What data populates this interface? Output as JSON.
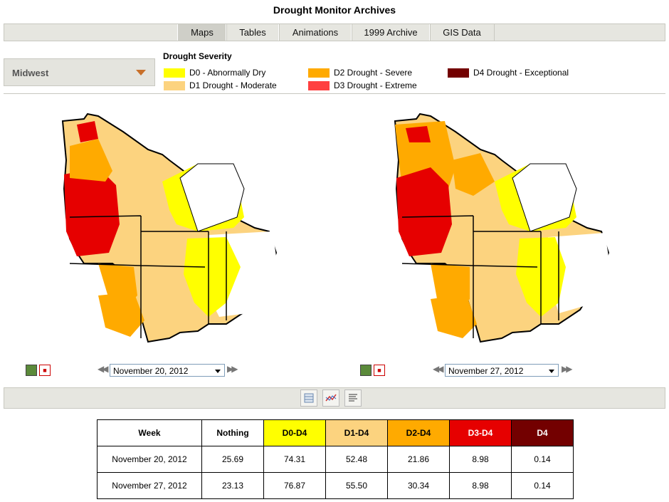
{
  "page": {
    "title": "Drought Monitor Archives"
  },
  "nav": {
    "tabs": [
      "Maps",
      "Tables",
      "Animations",
      "1999 Archive",
      "GIS Data"
    ],
    "active": "Maps"
  },
  "region": {
    "selected": "Midwest"
  },
  "legend": {
    "title": "Drought Severity",
    "items": [
      {
        "label": "D0 - Abnormally Dry",
        "color": "#ffff00"
      },
      {
        "label": "D1 Drought - Moderate",
        "color": "#fcd37f"
      },
      {
        "label": "D2 Drought - Severe",
        "color": "#ffaa00"
      },
      {
        "label": "D3 Drought - Extreme",
        "color": "#e60000"
      },
      {
        "label": "D4 Drought - Exceptional",
        "color": "#730000"
      }
    ]
  },
  "maps": {
    "left": {
      "date": "November 20, 2012"
    },
    "right": {
      "date": "November 27, 2012"
    }
  },
  "icons": {
    "image": "image-icon",
    "pdf": "pdf-icon",
    "prev": "double-left-arrow-icon",
    "next": "double-right-arrow-icon",
    "table_view": "table-icon",
    "chart_view": "chart-icon",
    "text_view": "text-icon"
  },
  "table": {
    "headers": [
      "Week",
      "Nothing",
      "D0-D4",
      "D1-D4",
      "D2-D4",
      "D3-D4",
      "D4"
    ],
    "header_colors": [
      "#ffffff",
      "#ffffff",
      "#ffff00",
      "#fcd37f",
      "#ffaa00",
      "#e60000",
      "#730000"
    ],
    "rows": [
      [
        "November 20, 2012",
        "25.69",
        "74.31",
        "52.48",
        "21.86",
        "8.98",
        "0.14"
      ],
      [
        "November 27, 2012",
        "23.13",
        "76.87",
        "55.50",
        "30.34",
        "8.98",
        "0.14"
      ]
    ]
  }
}
